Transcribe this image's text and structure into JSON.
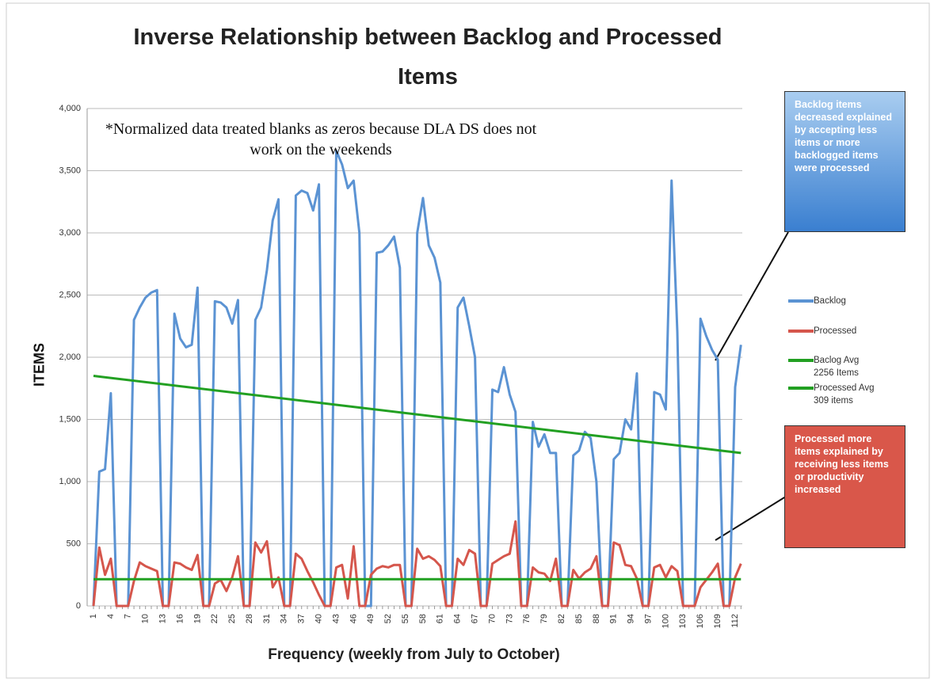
{
  "chart_data": {
    "type": "line",
    "title": "Inverse Relationship between Backlog and Processed Items",
    "note": "*Normalized data treated blanks as zeros because DLA DS does not work on the weekends",
    "x_label": "Frequency (weekly from July to October)",
    "y_label": "ITEMS",
    "annotations": [
      "Backlog items decreased explained by accepting less items or more backlogged items were processed",
      "Processed more items explained by receiving less items or productivity increased"
    ],
    "categories": [
      1,
      null,
      null,
      4,
      null,
      null,
      7,
      null,
      null,
      10,
      null,
      null,
      13,
      null,
      null,
      16,
      null,
      null,
      19,
      null,
      null,
      22,
      null,
      null,
      25,
      null,
      null,
      28,
      null,
      null,
      31,
      null,
      null,
      34,
      null,
      null,
      37,
      null,
      null,
      40,
      null,
      null,
      43,
      null,
      null,
      46,
      null,
      null,
      49,
      null,
      null,
      52,
      null,
      null,
      55,
      null,
      null,
      58,
      null,
      null,
      61,
      null,
      null,
      64,
      null,
      null,
      67,
      null,
      null,
      70,
      null,
      null,
      73,
      null,
      null,
      76,
      null,
      null,
      79,
      null,
      null,
      82,
      null,
      null,
      85,
      null,
      null,
      88,
      null,
      null,
      91,
      null,
      null,
      94,
      null,
      null,
      97,
      null,
      null,
      100,
      null,
      null,
      103,
      null,
      null,
      106,
      null,
      null,
      109,
      null,
      null,
      112,
      null
    ],
    "series": [
      {
        "name": "Backlog",
        "color": "#5b93d3",
        "values": [
          0,
          1080,
          1100,
          1710,
          0,
          0,
          0,
          2300,
          2400,
          2480,
          2520,
          2540,
          0,
          0,
          2350,
          2150,
          2080,
          2100,
          2560,
          0,
          0,
          2450,
          2440,
          2400,
          2270,
          2460,
          0,
          0,
          2300,
          2400,
          2700,
          3100,
          3270,
          0,
          0,
          3300,
          3340,
          3320,
          3180,
          3390,
          0,
          0,
          3660,
          3550,
          3360,
          3420,
          3000,
          0,
          0,
          2840,
          2850,
          2900,
          2970,
          2720,
          0,
          0,
          3000,
          3280,
          2900,
          2800,
          2600,
          0,
          0,
          2400,
          2480,
          2250,
          2000,
          0,
          0,
          1740,
          1720,
          1920,
          1700,
          1560,
          0,
          0,
          1480,
          1280,
          1380,
          1230,
          1230,
          0,
          0,
          1210,
          1250,
          1400,
          1350,
          1000,
          0,
          0,
          1180,
          1230,
          1500,
          1420,
          1870,
          0,
          0,
          1720,
          1700,
          1580,
          3420,
          2200,
          0,
          0,
          0,
          2310,
          2170,
          2060,
          1980,
          0,
          0,
          1760,
          2100
        ]
      },
      {
        "name": "Processed",
        "color": "#d5564c",
        "values": [
          0,
          470,
          250,
          380,
          0,
          0,
          0,
          200,
          350,
          320,
          300,
          280,
          0,
          0,
          350,
          340,
          310,
          290,
          410,
          0,
          0,
          180,
          210,
          120,
          230,
          400,
          0,
          0,
          510,
          430,
          520,
          150,
          230,
          0,
          0,
          420,
          380,
          280,
          190,
          90,
          0,
          0,
          310,
          330,
          60,
          480,
          0,
          0,
          250,
          300,
          320,
          310,
          330,
          330,
          0,
          0,
          460,
          380,
          400,
          370,
          320,
          0,
          0,
          380,
          330,
          450,
          420,
          0,
          0,
          340,
          370,
          400,
          420,
          680,
          0,
          0,
          310,
          270,
          260,
          200,
          380,
          0,
          0,
          290,
          220,
          270,
          300,
          400,
          0,
          0,
          510,
          490,
          330,
          320,
          220,
          0,
          0,
          310,
          330,
          230,
          320,
          280,
          0,
          0,
          0,
          150,
          210,
          270,
          340,
          0,
          0,
          230,
          340
        ]
      },
      {
        "name": "Baclog Avg 2256 Items",
        "color": "#22a022",
        "x": [
          1,
          113
        ],
        "values": [
          1850,
          1230
        ]
      },
      {
        "name": "Processed Avg 309 items",
        "color": "#22a022",
        "x": [
          1,
          113
        ],
        "values": [
          215,
          215
        ]
      }
    ],
    "ylim": [
      0,
      4000
    ],
    "yticks": [
      0,
      500,
      {
        "value": 1000,
        "label": "1,000"
      },
      {
        "value": 1500,
        "label": "1,500"
      },
      {
        "value": 2000,
        "label": "2,000"
      },
      {
        "value": 2500,
        "label": "2,500"
      },
      {
        "value": 3000,
        "label": "3,000"
      },
      {
        "value": 3500,
        "label": "3,500"
      },
      {
        "value": 4000,
        "label": "4,000"
      }
    ],
    "grid": true
  }
}
